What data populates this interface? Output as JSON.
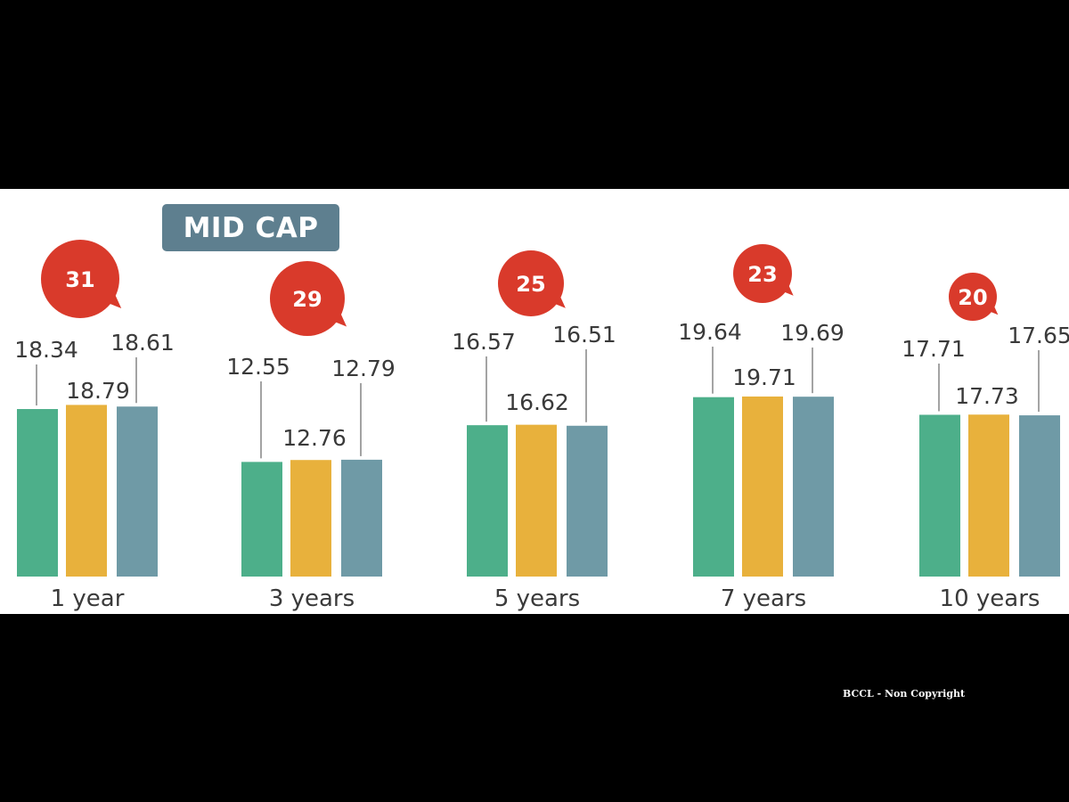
{
  "title": "MID CAP",
  "watermark": "BCCL - Non Copyright",
  "colors": {
    "series": [
      "#4daf8a",
      "#e8b13c",
      "#6f9aa6"
    ],
    "badge": "#d93a2b",
    "title_bg": "#5e7f8f",
    "leader": "#666666"
  },
  "chart_data": {
    "type": "bar",
    "title": "MID CAP",
    "categories": [
      "1 year",
      "3 years",
      "5 years",
      "7 years",
      "10 years"
    ],
    "series": [
      {
        "values": [
          18.34,
          12.55,
          16.57,
          19.64,
          17.71
        ]
      },
      {
        "values": [
          18.79,
          12.76,
          16.62,
          19.71,
          17.73
        ]
      },
      {
        "values": [
          18.61,
          12.79,
          16.51,
          19.69,
          17.65
        ]
      }
    ],
    "value_labels": [
      [
        "18.34",
        "12.55",
        "16.57",
        "19.64",
        "17.71"
      ],
      [
        "18.79",
        "12.76",
        "16.62",
        "19.71",
        "17.73"
      ],
      [
        "18.61",
        "12.79",
        "16.51",
        "19.69",
        "17.65"
      ]
    ],
    "badges": [
      "31",
      "29",
      "25",
      "23",
      "20"
    ],
    "ylim": [
      0,
      21
    ],
    "grid": false,
    "legend": "none"
  }
}
